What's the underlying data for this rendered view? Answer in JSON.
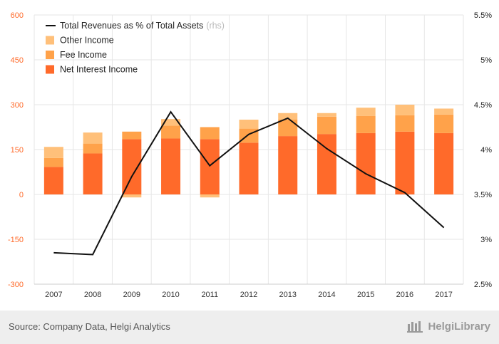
{
  "source": "Source: Company Data, Helgi Analytics",
  "brand": "HelgiLibrary",
  "colors": {
    "net_interest": "#ff6a2a",
    "fee": "#ffa24a",
    "other": "#ffc07a",
    "line": "#111111",
    "left_axis_text": "#ff6a2a",
    "right_axis_text": "#222222",
    "grid": "#e6e6e6",
    "footer_bg": "#eeeeee"
  },
  "chart_data": {
    "type": "bar",
    "stacked": true,
    "categories": [
      "2007",
      "2008",
      "2009",
      "2010",
      "2011",
      "2012",
      "2013",
      "2014",
      "2015",
      "2016",
      "2017"
    ],
    "series": [
      {
        "name": "Net Interest Income",
        "axis": "left",
        "color": "#ff6a2a",
        "values": [
          92,
          137,
          185,
          187,
          185,
          173,
          195,
          202,
          205,
          210,
          205
        ]
      },
      {
        "name": "Fee Income",
        "axis": "left",
        "color": "#ffa24a",
        "values": [
          30,
          33,
          25,
          43,
          40,
          47,
          55,
          58,
          57,
          55,
          62
        ]
      },
      {
        "name": "Other Income",
        "axis": "left",
        "color": "#ffc07a",
        "values": [
          37,
          37,
          -10,
          22,
          -10,
          30,
          22,
          12,
          28,
          35,
          20
        ]
      },
      {
        "name": "Total Revenues as % of Total Assets",
        "name_suffix": "(rhs)",
        "type": "line",
        "axis": "right",
        "color": "#111111",
        "values": [
          2.85,
          2.83,
          3.7,
          4.42,
          3.82,
          4.17,
          4.35,
          4.01,
          3.73,
          3.52,
          3.13
        ]
      }
    ],
    "y_left": {
      "ticks": [
        "600",
        "450",
        "300",
        "150",
        "0",
        "-150",
        "-300"
      ],
      "tick_values": [
        600,
        450,
        300,
        150,
        0,
        -150,
        -300
      ],
      "ylim": [
        -300,
        600
      ]
    },
    "y_right": {
      "ticks": [
        "5.5%",
        "5%",
        "4.5%",
        "4%",
        "3.5%",
        "3%",
        "2.5%"
      ],
      "tick_values": [
        5.5,
        5,
        4.5,
        4,
        3.5,
        3,
        2.5
      ],
      "ylim": [
        2.5,
        5.5
      ]
    },
    "legend_order": [
      3,
      2,
      1,
      0
    ],
    "legend_position": "top-left",
    "grid": true
  }
}
